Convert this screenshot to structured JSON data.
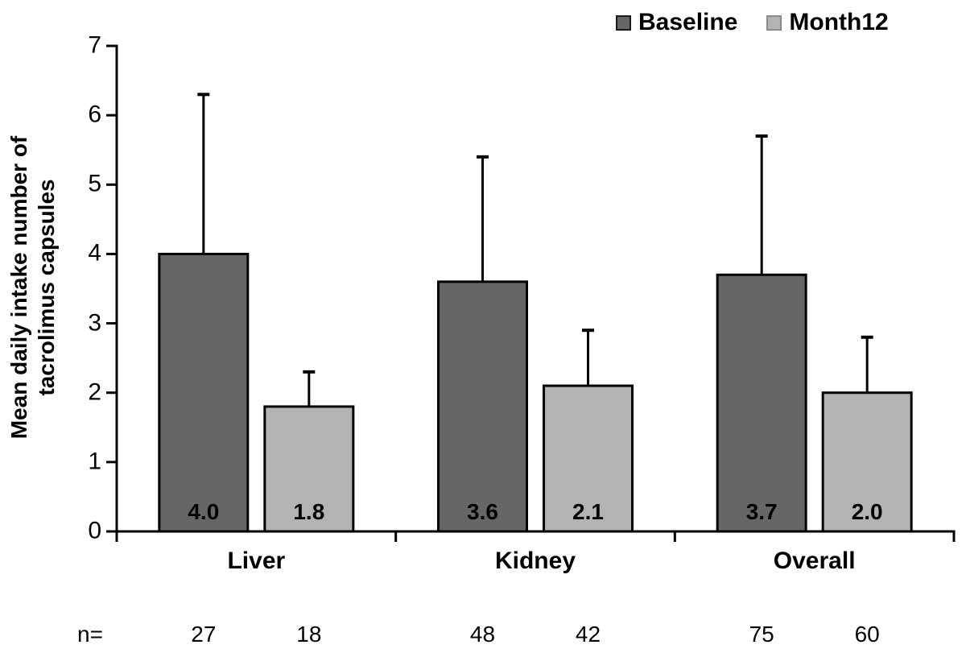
{
  "chart_data": {
    "type": "bar",
    "title": "",
    "ylabel_lines": [
      "Mean daily intake number of",
      "tacrolimus capsules"
    ],
    "ylabel": "Mean daily intake number of tacrolimus capsules",
    "xlabel": "",
    "ylim": [
      0,
      7
    ],
    "yticks": [
      "0",
      "1",
      "2",
      "3",
      "4",
      "5",
      "6",
      "7"
    ],
    "categories": [
      "Liver",
      "Kidney",
      "Overall"
    ],
    "series": [
      {
        "name": "Baseline",
        "fill": "#666666",
        "values": [
          4.0,
          3.6,
          3.7
        ],
        "value_labels": [
          "4.0",
          "3.6",
          "3.7"
        ],
        "error_bar_tops": [
          6.3,
          5.4,
          5.7
        ],
        "n": [
          "27",
          "48",
          "75"
        ]
      },
      {
        "name": "Month12",
        "fill": "#B3B3B3",
        "values": [
          1.8,
          2.1,
          2.0
        ],
        "value_labels": [
          "1.8",
          "2.1",
          "2.0"
        ],
        "error_bar_tops": [
          2.3,
          2.9,
          2.8
        ],
        "n": [
          "18",
          "42",
          "60"
        ]
      }
    ],
    "n_row_label": "n=",
    "error_bars": "upper-only",
    "grid": false,
    "legend_position": "top-right"
  },
  "colors": {
    "background": "#ffffff",
    "axis": "#000000",
    "text": "#000000",
    "bar_border": "#000000",
    "baseline_fill": "#666666",
    "month12_fill": "#B3B3B3"
  }
}
